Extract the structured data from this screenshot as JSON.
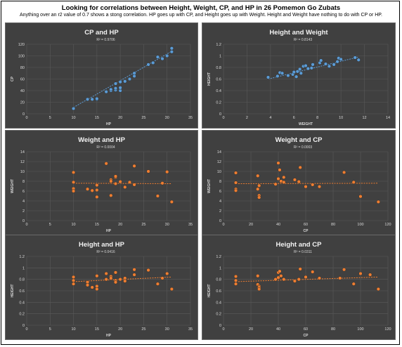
{
  "page": {
    "title": "Looking for correlations between Height, Weight, CP, and HP in 26 Pomemon Go Zubats",
    "subtitle": "Anything over an r2 value of 0.7 shows a stong correlation. HP goes up with CP, and Height goes up with Weight. Height and Weight have nothing to do with CP or HP."
  },
  "colors": {
    "panel_bg": "#404040",
    "blue_marker": "#5b9bd5",
    "orange_marker": "#ed7d31",
    "trend_blue": "#5b9bd5",
    "trend_orange": "#ed7d31",
    "axis_text": "#d9d9d9",
    "grid": "#595959"
  },
  "chart_data": [
    {
      "type": "scatter",
      "title": "CP and HP",
      "r2": "R² = 0.9706",
      "xlabel": "HP",
      "ylabel": "CP",
      "xlim": [
        0,
        35
      ],
      "ylim": [
        0,
        120
      ],
      "xticks": [
        0,
        5,
        10,
        15,
        20,
        25,
        30,
        35
      ],
      "yticks": [
        0,
        20,
        40,
        60,
        80,
        100,
        120
      ],
      "color": "blue",
      "grid": true,
      "x": [
        10,
        10,
        13,
        14,
        15,
        15,
        17,
        18,
        18,
        19,
        19,
        19,
        20,
        20,
        20,
        21,
        22,
        23,
        23,
        26,
        27,
        28,
        29,
        30,
        31,
        31
      ],
      "y": [
        9,
        9,
        25,
        25,
        25,
        26,
        38,
        40,
        42,
        41,
        44,
        52,
        40,
        45,
        55,
        56,
        60,
        70,
        65,
        85,
        88,
        98,
        95,
        100,
        107,
        113
      ],
      "trend": [
        [
          10,
          11
        ],
        [
          31,
          108
        ]
      ]
    },
    {
      "type": "scatter",
      "title": "Height and Weight",
      "r2": "R² = 0.8143",
      "xlabel": "WEIGHT",
      "ylabel": "HEIGHT",
      "xlim": [
        0,
        14
      ],
      "ylim": [
        0,
        1.2
      ],
      "xticks": [
        0,
        2,
        4,
        6,
        8,
        10,
        12,
        14
      ],
      "yticks": [
        0,
        0.2,
        0.4,
        0.6,
        0.8,
        1,
        1.2
      ],
      "color": "blue",
      "grid": true,
      "x": [
        3.8,
        4.6,
        4.8,
        5.0,
        5.5,
        5.9,
        6.0,
        6.2,
        6.3,
        6.5,
        6.6,
        6.8,
        7.0,
        7.2,
        7.5,
        7.6,
        8.2,
        8.3,
        8.7,
        9.0,
        9.4,
        9.7,
        9.8,
        10.0,
        11.2,
        11.5
      ],
      "y": [
        0.63,
        0.65,
        0.71,
        0.7,
        0.66,
        0.68,
        0.72,
        0.64,
        0.73,
        0.77,
        0.7,
        0.82,
        0.83,
        0.78,
        0.79,
        0.85,
        0.88,
        0.92,
        0.86,
        0.82,
        0.85,
        0.9,
        0.96,
        0.94,
        0.97,
        0.93
      ],
      "trend": [
        [
          3.8,
          0.6
        ],
        [
          11.5,
          0.98
        ]
      ]
    },
    {
      "type": "scatter",
      "title": "Weight and HP",
      "r2": "R² = 0.0004",
      "xlabel": "HP",
      "ylabel": "WEIGHT",
      "xlim": [
        0,
        35
      ],
      "ylim": [
        0,
        14
      ],
      "xticks": [
        0,
        5,
        10,
        15,
        20,
        25,
        30,
        35
      ],
      "yticks": [
        0,
        2,
        4,
        6,
        8,
        10,
        12,
        14
      ],
      "color": "orange",
      "grid": true,
      "x": [
        10,
        10,
        10,
        10,
        13,
        14,
        15,
        15,
        15,
        17,
        18,
        18,
        18,
        19,
        19,
        19,
        20,
        21,
        22,
        23,
        23,
        26,
        28,
        29,
        30,
        31
      ],
      "y": [
        9.8,
        7.8,
        6.5,
        6,
        6.4,
        6.1,
        7.2,
        6.2,
        4.8,
        11.6,
        8.3,
        5.1,
        8,
        7.5,
        8.8,
        9,
        7.9,
        6.8,
        7.8,
        7.3,
        11.1,
        10,
        5,
        7.6,
        9.9,
        3.8
      ],
      "trend": [
        [
          10,
          7.6
        ],
        [
          31,
          7.5
        ]
      ]
    },
    {
      "type": "scatter",
      "title": "Weight and CP",
      "r2": "R² = 0.0003",
      "xlabel": "CP",
      "ylabel": "WEIGHT",
      "xlim": [
        0,
        120
      ],
      "ylim": [
        0,
        14
      ],
      "xticks": [
        0,
        20,
        40,
        60,
        80,
        100,
        120
      ],
      "yticks": [
        0,
        2,
        4,
        6,
        8,
        10,
        12,
        14
      ],
      "color": "orange",
      "grid": true,
      "x": [
        9,
        9,
        9,
        9,
        25,
        25,
        26,
        26,
        26,
        38,
        40,
        40,
        41,
        42,
        44,
        44,
        52,
        55,
        56,
        60,
        65,
        70,
        88,
        95,
        100,
        113
      ],
      "y": [
        9.7,
        7.7,
        6.4,
        6.1,
        9.1,
        6.4,
        5.1,
        4.7,
        7.1,
        7.4,
        8.5,
        11.7,
        10.3,
        8,
        7.8,
        8.8,
        8.3,
        7.9,
        10.8,
        6.9,
        7.3,
        6.9,
        9.8,
        7.8,
        4.9,
        3.8
      ],
      "trend": [
        [
          9,
          7.5
        ],
        [
          113,
          7.6
        ]
      ]
    },
    {
      "type": "scatter",
      "title": "Height and HP",
      "r2": "R² = 0.0416",
      "xlabel": "HP",
      "ylabel": "HEIGHT",
      "xlim": [
        0,
        35
      ],
      "ylim": [
        0,
        1.2
      ],
      "xticks": [
        0,
        5,
        10,
        15,
        20,
        25,
        30,
        35
      ],
      "yticks": [
        0,
        0.2,
        0.4,
        0.6,
        0.8,
        1,
        1.2
      ],
      "color": "orange",
      "grid": true,
      "x": [
        10,
        10,
        10,
        13,
        13,
        14,
        15,
        15,
        15,
        17,
        17,
        18,
        18,
        19,
        19,
        19,
        20,
        21,
        21,
        23,
        23,
        26,
        28,
        29,
        30,
        31
      ],
      "y": [
        0.84,
        0.78,
        0.72,
        0.75,
        0.7,
        0.66,
        0.68,
        0.86,
        0.63,
        0.9,
        0.8,
        0.85,
        0.82,
        0.78,
        0.92,
        0.75,
        0.8,
        0.82,
        0.77,
        0.97,
        0.88,
        0.96,
        0.72,
        0.82,
        0.9,
        0.63
      ],
      "trend": [
        [
          10,
          0.76
        ],
        [
          31,
          0.84
        ]
      ]
    },
    {
      "type": "scatter",
      "title": "Height and CP",
      "r2": "R² = 0.0311",
      "xlabel": "CP",
      "ylabel": "HEIGHT",
      "xlim": [
        0,
        120
      ],
      "ylim": [
        0,
        1.2
      ],
      "xticks": [
        0,
        20,
        40,
        60,
        80,
        100,
        120
      ],
      "yticks": [
        0,
        0.2,
        0.4,
        0.6,
        0.8,
        1,
        1.2
      ],
      "color": "orange",
      "grid": true,
      "x": [
        9,
        9,
        9,
        25,
        25,
        26,
        26,
        26,
        38,
        40,
        40,
        41,
        42,
        44,
        52,
        55,
        56,
        60,
        65,
        70,
        85,
        88,
        95,
        100,
        107,
        113
      ],
      "y": [
        0.85,
        0.78,
        0.72,
        0.86,
        0.71,
        0.68,
        0.66,
        0.63,
        0.8,
        0.92,
        0.83,
        0.94,
        0.86,
        0.8,
        0.77,
        0.8,
        0.98,
        0.84,
        0.93,
        0.82,
        0.82,
        0.97,
        0.72,
        0.9,
        0.88,
        0.63
      ],
      "trend": [
        [
          9,
          0.76
        ],
        [
          113,
          0.84
        ]
      ]
    }
  ]
}
